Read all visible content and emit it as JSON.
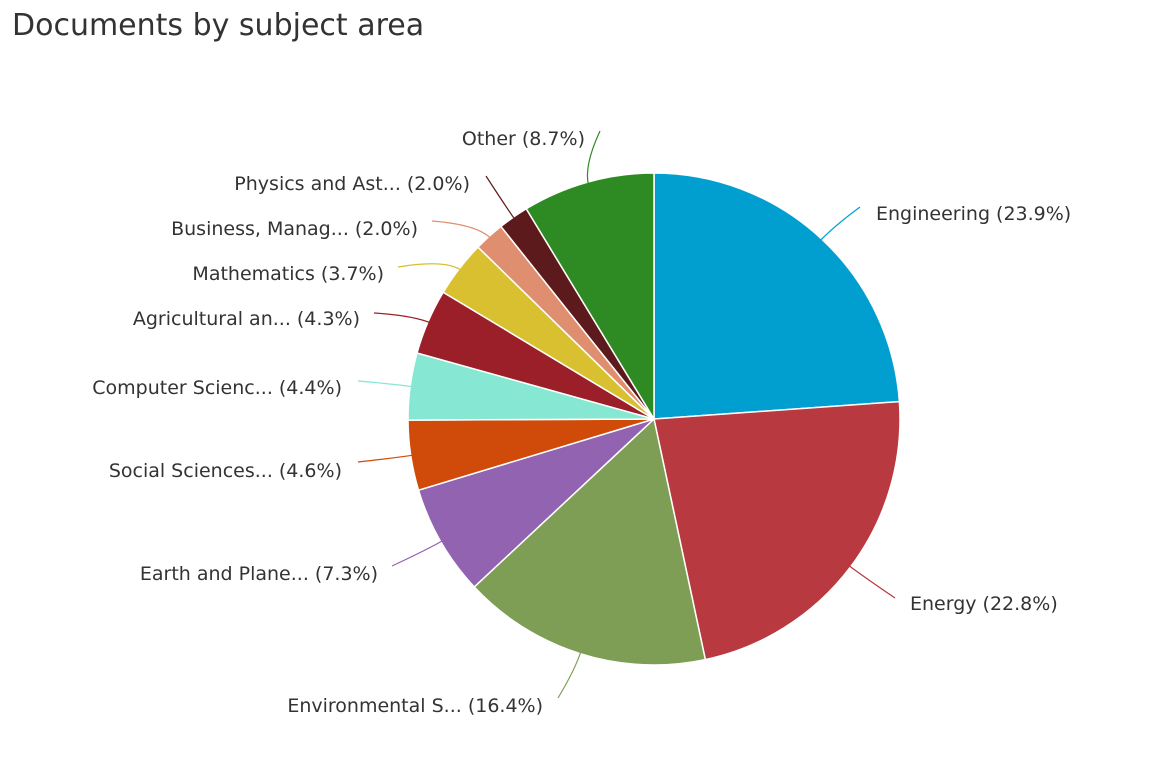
{
  "chart_data": {
    "type": "pie",
    "title": "Documents by subject area",
    "slices": [
      {
        "label": "Engineering",
        "value": 23.9,
        "display": "Engineering (23.9%)",
        "color": "#009fd0"
      },
      {
        "label": "Energy",
        "value": 22.8,
        "display": "Energy (22.8%)",
        "color": "#b83a40"
      },
      {
        "label": "Environmental S...",
        "value": 16.4,
        "display": "Environmental S... (16.4%)",
        "color": "#7e9e55"
      },
      {
        "label": "Earth and Plane...",
        "value": 7.3,
        "display": "Earth and Plane... (7.3%)",
        "color": "#9263b0"
      },
      {
        "label": "Social Sciences...",
        "value": 4.6,
        "display": "Social Sciences... (4.6%)",
        "color": "#d04a09"
      },
      {
        "label": "Computer Scienc...",
        "value": 4.4,
        "display": "Computer Scienc... (4.4%)",
        "color": "#86e8d2"
      },
      {
        "label": "Agricultural an...",
        "value": 4.3,
        "display": "Agricultural an... (4.3%)",
        "color": "#9a1f28"
      },
      {
        "label": "Mathematics",
        "value": 3.7,
        "display": "Mathematics (3.7%)",
        "color": "#d8c030"
      },
      {
        "label": "Business, Manag...",
        "value": 2.0,
        "display": "Business, Manag... (2.0%)",
        "color": "#e08e70"
      },
      {
        "label": "Physics and Ast...",
        "value": 2.0,
        "display": "Physics and Ast... (2.0%)",
        "color": "#5d1a1c"
      },
      {
        "label": "Other",
        "value": 8.7,
        "display": "Other (8.7%)",
        "color": "#2e8a22"
      }
    ]
  }
}
